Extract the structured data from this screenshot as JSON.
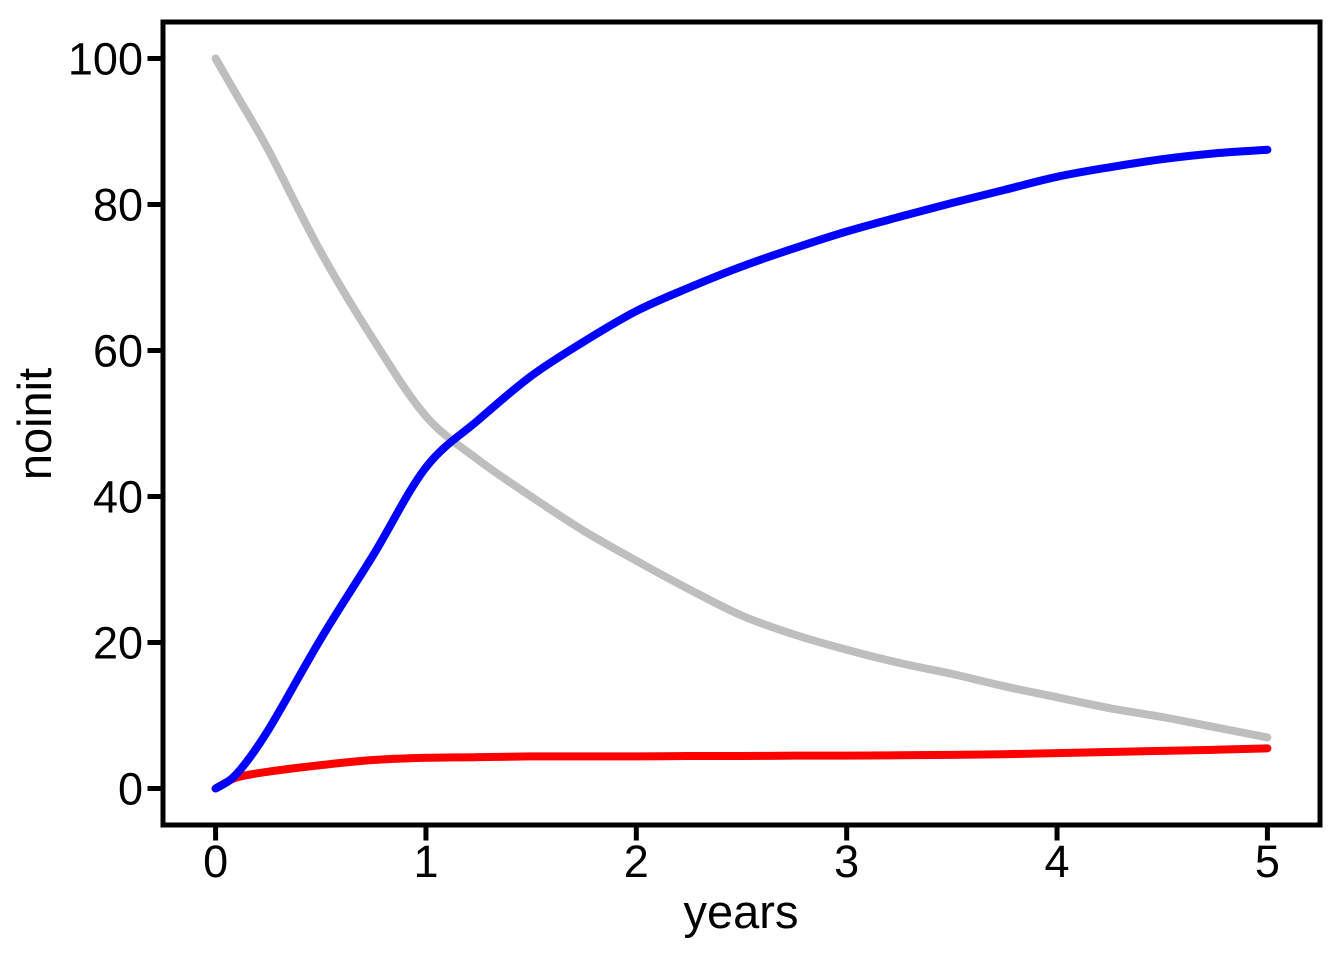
{
  "figure": {
    "background": "#ffffff",
    "axis_color": "#000000",
    "text_color": "#000000"
  },
  "chart_data": {
    "type": "line",
    "title": "",
    "xlabel": "years",
    "ylabel": "noinit",
    "xlim": [
      -0.25,
      5.25
    ],
    "ylim": [
      -5,
      105
    ],
    "xticks": [
      0,
      1,
      2,
      3,
      4,
      5
    ],
    "yticks": [
      0,
      20,
      40,
      60,
      80,
      100
    ],
    "grid": false,
    "legend": "none",
    "frame": "box",
    "x": [
      0,
      0.1,
      0.25,
      0.5,
      0.75,
      1,
      1.25,
      1.5,
      1.75,
      2,
      2.25,
      2.5,
      2.75,
      3,
      3.25,
      3.5,
      3.75,
      4,
      4.25,
      4.5,
      4.75,
      5
    ],
    "series": [
      {
        "name": "gray-declining-curve",
        "color": "#bebebe",
        "line_width": 8,
        "values": [
          100,
          95,
          87.5,
          73.5,
          61.5,
          51,
          45,
          40,
          35.3,
          31.2,
          27.3,
          23.7,
          21.1,
          19,
          17.2,
          15.7,
          14,
          12.5,
          11,
          9.8,
          8.4,
          7
        ]
      },
      {
        "name": "red-flat-curve",
        "color": "#ff0000",
        "line_width": 8,
        "values": [
          0,
          1.5,
          2.3,
          3.2,
          3.9,
          4.2,
          4.3,
          4.4,
          4.4,
          4.4,
          4.45,
          4.45,
          4.5,
          4.5,
          4.55,
          4.6,
          4.7,
          4.85,
          5,
          5.15,
          5.3,
          5.5
        ]
      },
      {
        "name": "blue-rising-curve",
        "color": "#0000ff",
        "line_width": 8,
        "values": [
          0,
          2,
          8,
          20.5,
          32,
          44,
          50.5,
          56.5,
          61.2,
          65.4,
          68.6,
          71.5,
          74,
          76.3,
          78.3,
          80.2,
          82,
          83.8,
          85.1,
          86.2,
          87,
          87.5
        ]
      }
    ]
  }
}
